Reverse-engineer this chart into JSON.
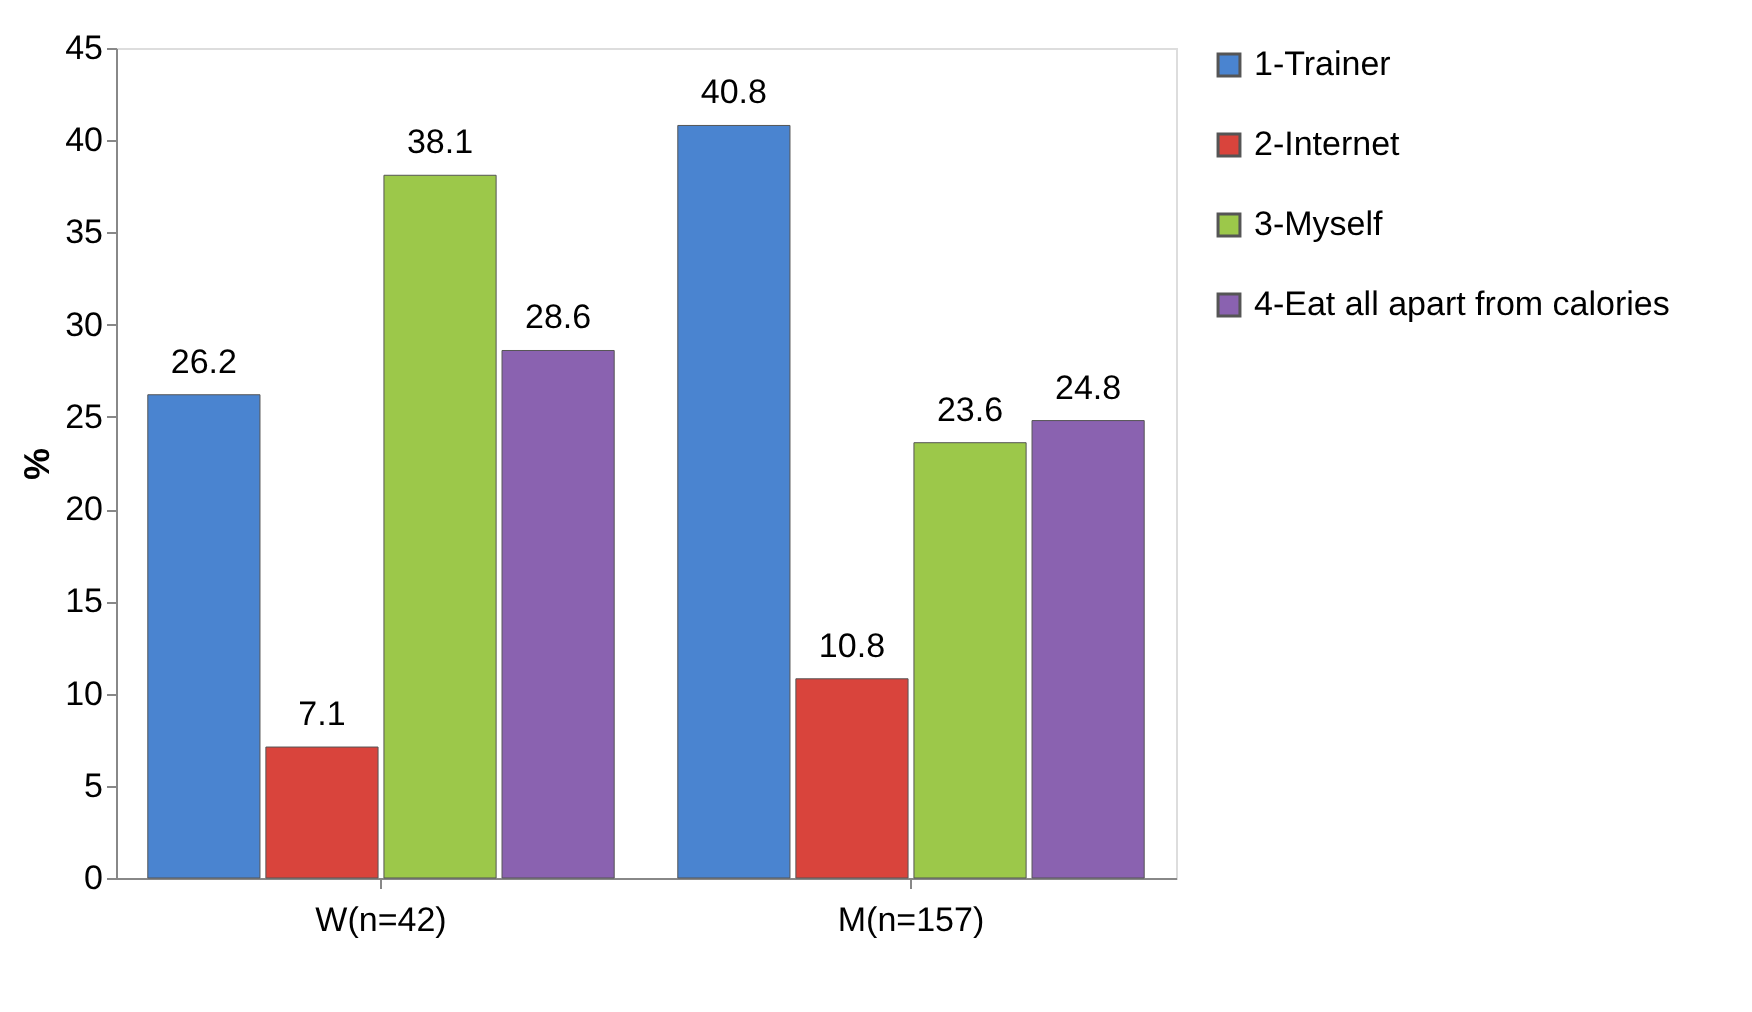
{
  "chart_data": {
    "type": "bar",
    "ylabel": "%",
    "categories": [
      "W(n=42)",
      "M(n=157)"
    ],
    "series": [
      {
        "name": "1-Trainer",
        "color": "#4a84d0",
        "values": [
          26.2,
          40.8
        ]
      },
      {
        "name": "2-Internet",
        "color": "#d9443c",
        "values": [
          7.1,
          10.8
        ]
      },
      {
        "name": "3-Myself",
        "color": "#9cc84a",
        "values": [
          38.1,
          23.6
        ]
      },
      {
        "name": "4-Eat all apart from calories",
        "color": "#8a62b0",
        "values": [
          28.6,
          24.8
        ]
      }
    ],
    "ylim": [
      0,
      45
    ],
    "yticks": [
      0,
      5,
      10,
      15,
      20,
      25,
      30,
      35,
      40,
      45
    ],
    "data_labels": true,
    "grid": false,
    "legend": "right"
  }
}
